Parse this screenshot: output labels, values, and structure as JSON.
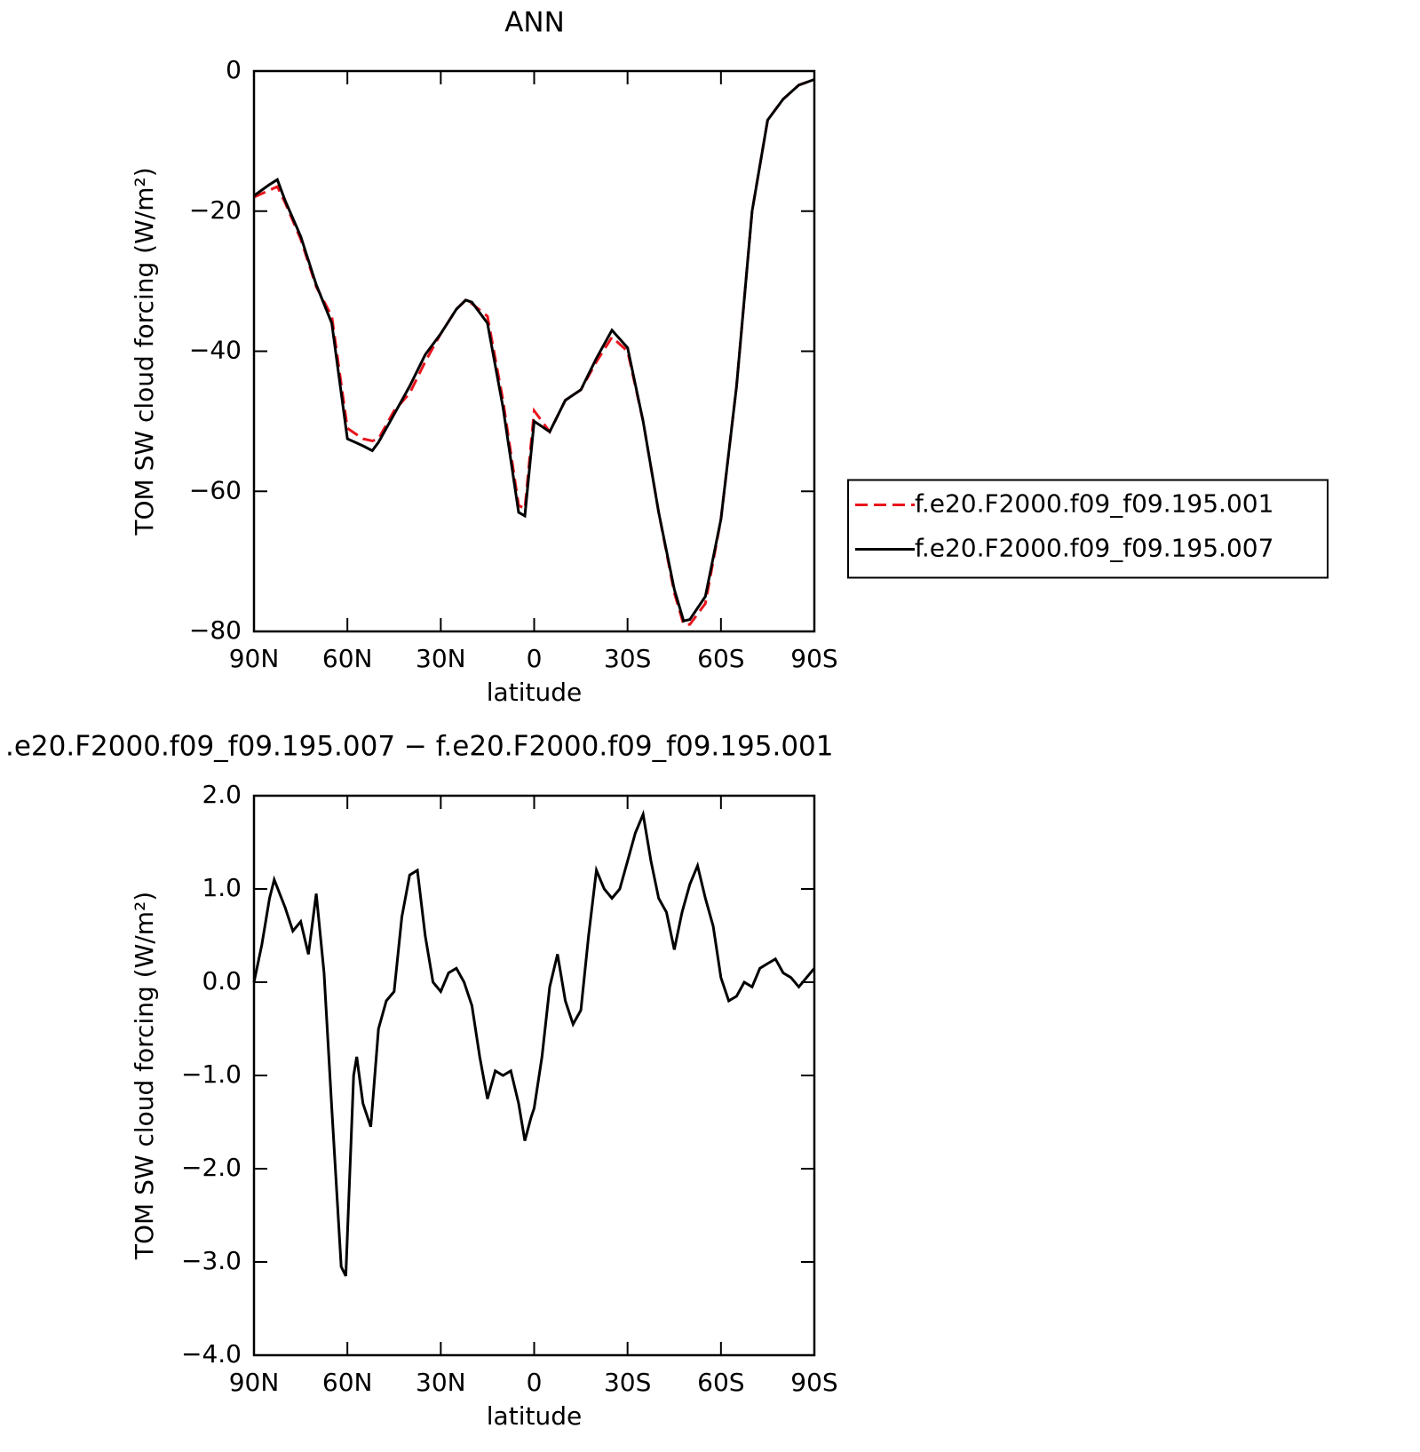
{
  "chart_data": [
    {
      "type": "line",
      "title": "ANN",
      "x_label": "latitude",
      "y_label": "TOM SW cloud forcing (W/m²)",
      "x": [
        90,
        85,
        82.5,
        80,
        75,
        70,
        65,
        60,
        55,
        52,
        50,
        45,
        40,
        35,
        30,
        25,
        22,
        20,
        15,
        10,
        5,
        3,
        0,
        -5,
        -10,
        -15,
        -20,
        -25,
        -30,
        -35,
        -40,
        -45,
        -48,
        -50,
        -55,
        -60,
        -65,
        -70,
        -75,
        -80,
        -85,
        -90
      ],
      "xlim": [
        90,
        -90
      ],
      "xticks": [
        {
          "value": 90,
          "label": "90N"
        },
        {
          "value": 60,
          "label": "60N"
        },
        {
          "value": 30,
          "label": "30N"
        },
        0,
        {
          "value": -30,
          "label": "30S"
        },
        {
          "value": -60,
          "label": "60S"
        },
        {
          "value": -90,
          "label": "90S"
        }
      ],
      "ylim": [
        -80,
        0
      ],
      "yticks": [
        {
          "value": -80,
          "label": "−80"
        },
        {
          "value": -60,
          "label": "−60"
        },
        {
          "value": -40,
          "label": "−40"
        },
        {
          "value": -20,
          "label": "−20"
        },
        0
      ],
      "legend": "right",
      "series": [
        {
          "name": "f.e20.F2000.f09_f09.195.001",
          "color": "#e8141c",
          "line_style": "dashed",
          "values": [
            -18,
            -17,
            -16.5,
            -18.8,
            -24,
            -30.8,
            -35,
            -51,
            -52.5,
            -52.8,
            -52.5,
            -48.5,
            -46,
            -41.5,
            -37.5,
            -34,
            -32.7,
            -33.2,
            -35,
            -47,
            -62,
            -62.5,
            -48.5,
            -51.5,
            -47,
            -45.5,
            -41.5,
            -38,
            -40,
            -50,
            -63,
            -74.5,
            -79,
            -79,
            -76,
            -64,
            -45,
            -20,
            -7,
            -4,
            -2,
            -1.2
          ]
        },
        {
          "name": "f.e20.F2000.f09_f09.195.007",
          "color": "#000000",
          "line_style": "solid",
          "values": [
            -17.8,
            -16.2,
            -15.5,
            -18.5,
            -23.6,
            -30.5,
            -36,
            -52.5,
            -53.5,
            -54.2,
            -53,
            -49,
            -45,
            -40.5,
            -37.5,
            -34,
            -32.7,
            -33,
            -36,
            -48,
            -63,
            -63.5,
            -50,
            -51.5,
            -47,
            -45.5,
            -41,
            -37,
            -39.5,
            -50,
            -63,
            -74,
            -78.5,
            -78.3,
            -75,
            -64,
            -45,
            -20,
            -7,
            -4,
            -2,
            -1.2
          ]
        }
      ]
    },
    {
      "type": "line",
      "title": ".e20.F2000.f09_f09.195.007 − f.e20.F2000.f09_f09.195.001",
      "x_label": "latitude",
      "y_label": "TOM SW cloud forcing (W/m²)",
      "x": [
        90,
        87.5,
        85,
        83.5,
        80,
        77.5,
        75,
        72.5,
        70,
        67.5,
        65,
        62,
        60.5,
        58,
        57,
        55,
        52.5,
        50,
        47.5,
        45,
        42.5,
        40,
        37.5,
        35,
        32.5,
        30,
        27.5,
        25,
        22.5,
        20,
        17.5,
        15,
        12.5,
        10,
        7.5,
        5,
        3,
        1,
        0,
        -2.5,
        -5,
        -7.5,
        -10,
        -12.5,
        -15,
        -17.5,
        -20,
        -22.5,
        -25,
        -27.5,
        -30,
        -32.5,
        -35,
        -37.5,
        -40,
        -42.5,
        -45,
        -47.5,
        -50,
        -52.5,
        -55,
        -57.5,
        -60,
        -62.5,
        -65,
        -67.5,
        -70,
        -72.5,
        -75,
        -77.5,
        -80,
        -82.5,
        -85,
        -87.5,
        -90
      ],
      "xlim": [
        90,
        -90
      ],
      "xticks": [
        {
          "value": 90,
          "label": "90N"
        },
        {
          "value": 60,
          "label": "60N"
        },
        {
          "value": 30,
          "label": "30N"
        },
        0,
        {
          "value": -30,
          "label": "30S"
        },
        {
          "value": -60,
          "label": "60S"
        },
        {
          "value": -90,
          "label": "90S"
        }
      ],
      "ylim": [
        -4,
        2
      ],
      "yticks": [
        {
          "value": -4,
          "label": "−4.0"
        },
        {
          "value": -3,
          "label": "−3.0"
        },
        {
          "value": -2,
          "label": "−2.0"
        },
        {
          "value": -1,
          "label": "−1.0"
        },
        {
          "value": 0,
          "label": "0.0"
        },
        {
          "value": 1,
          "label": "1.0"
        },
        {
          "value": 2,
          "label": "2.0"
        }
      ],
      "series": [
        {
          "color": "#000000",
          "line_style": "solid",
          "values": [
            0,
            0.4,
            0.9,
            1.1,
            0.8,
            0.55,
            0.65,
            0.3,
            0.95,
            0.1,
            -1.35,
            -3.05,
            -3.15,
            -1.0,
            -0.8,
            -1.3,
            -1.55,
            -0.5,
            -0.2,
            -0.1,
            0.7,
            1.15,
            1.2,
            0.5,
            0.0,
            -0.1,
            0.1,
            0.15,
            0.0,
            -0.25,
            -0.8,
            -1.25,
            -0.95,
            -1.0,
            -0.95,
            -1.3,
            -1.7,
            -1.45,
            -1.35,
            -0.8,
            -0.05,
            0.3,
            -0.2,
            -0.45,
            -0.3,
            0.5,
            1.2,
            1.0,
            0.9,
            1.0,
            1.3,
            1.6,
            1.8,
            1.3,
            0.9,
            0.75,
            0.35,
            0.75,
            1.05,
            1.25,
            0.9,
            0.6,
            0.05,
            -0.2,
            -0.15,
            0.0,
            -0.05,
            0.15,
            0.2,
            0.25,
            0.1,
            0.05,
            -0.05,
            0.05,
            0.15
          ]
        }
      ]
    }
  ]
}
